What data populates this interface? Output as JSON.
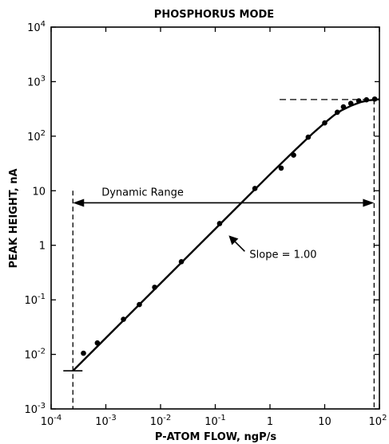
{
  "chart_data": {
    "type": "scatter",
    "title": "PHOSPHORUS MODE",
    "xlabel": "P-ATOM FLOW, ngP/s",
    "ylabel": "PEAK HEIGHT, nA",
    "x_scale": "log",
    "y_scale": "log",
    "xlim": [
      0.0001,
      100
    ],
    "ylim": [
      0.001,
      10000
    ],
    "grid": false,
    "x_ticks": [
      {
        "value": 0.0001,
        "base": "10",
        "exp": "-4",
        "plain": ""
      },
      {
        "value": 0.001,
        "base": "10",
        "exp": "-3",
        "plain": ""
      },
      {
        "value": 0.01,
        "base": "10",
        "exp": "-2",
        "plain": ""
      },
      {
        "value": 0.1,
        "base": "10",
        "exp": "-1",
        "plain": ""
      },
      {
        "value": 1,
        "base": "",
        "exp": "",
        "plain": "1"
      },
      {
        "value": 10,
        "base": "",
        "exp": "",
        "plain": "10"
      },
      {
        "value": 100,
        "base": "10",
        "exp": "2",
        "plain": ""
      }
    ],
    "y_ticks": [
      {
        "value": 0.001,
        "base": "10",
        "exp": "-3",
        "plain": ""
      },
      {
        "value": 0.01,
        "base": "10",
        "exp": "-2",
        "plain": ""
      },
      {
        "value": 0.1,
        "base": "10",
        "exp": "-1",
        "plain": ""
      },
      {
        "value": 1,
        "base": "",
        "exp": "",
        "plain": "1"
      },
      {
        "value": 10,
        "base": "",
        "exp": "",
        "plain": "10"
      },
      {
        "value": 100,
        "base": "10",
        "exp": "2",
        "plain": ""
      },
      {
        "value": 1000,
        "base": "10",
        "exp": "3",
        "plain": ""
      },
      {
        "value": 10000,
        "base": "10",
        "exp": "4",
        "plain": ""
      }
    ],
    "series": [
      {
        "kind": "points",
        "x": [
          0.00039,
          0.0007,
          0.0021,
          0.0041,
          0.0078,
          0.024,
          0.12,
          0.53,
          1.6,
          2.7,
          5.0,
          10.0,
          17.0,
          22.0,
          30.0,
          42.0,
          58.0,
          82.0
        ],
        "y": [
          0.0105,
          0.0162,
          0.044,
          0.082,
          0.17,
          0.5,
          2.5,
          11,
          26,
          45,
          96,
          175,
          275,
          345,
          400,
          445,
          465,
          480
        ]
      },
      {
        "kind": "fit_curve",
        "x": [
          0.00025,
          0.001,
          0.01,
          0.1,
          1,
          3,
          6,
          10,
          15,
          20,
          30,
          45,
          65,
          100
        ],
        "y": [
          0.005,
          0.02,
          0.2,
          2,
          20,
          58,
          112,
          175,
          245,
          295,
          360,
          420,
          455,
          475
        ]
      }
    ],
    "reference_lines": {
      "low_limit_x": 0.00025,
      "low_limit_y": 0.005,
      "high_limit_x": 80,
      "saturation_y": 470
    },
    "annotations": {
      "dynamic_range": {
        "text": "Dynamic Range",
        "x_from": 0.00025,
        "x_to": 80,
        "y": 6
      },
      "slope": {
        "text": "Slope = 1.00",
        "x": 0.5,
        "y": 0.7
      }
    }
  }
}
